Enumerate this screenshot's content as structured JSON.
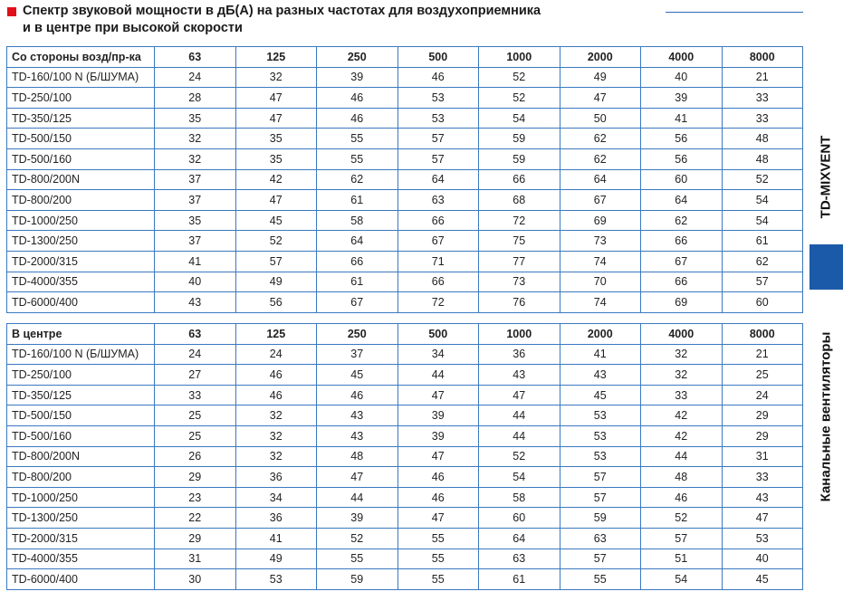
{
  "title": {
    "line1": "Спектр звуковой мощности в дБ(А) на разных частотах для воздухоприемника",
    "line2": "и в центре при высокой скорости",
    "marker_color": "#e0101a"
  },
  "sidebar": {
    "product": "TD-MIXVENT",
    "category": "Канальные вентиляторы",
    "accent_color": "#1b5aa8"
  },
  "tables": [
    {
      "header": [
        "Со стороны возд/пр-ка",
        "63",
        "125",
        "250",
        "500",
        "1000",
        "2000",
        "4000",
        "8000"
      ],
      "rows": [
        [
          "TD-160/100 N (Б/ШУМА)",
          "24",
          "32",
          "39",
          "46",
          "52",
          "49",
          "40",
          "21"
        ],
        [
          "TD-250/100",
          "28",
          "47",
          "46",
          "53",
          "52",
          "47",
          "39",
          "33"
        ],
        [
          "TD-350/125",
          "35",
          "47",
          "46",
          "53",
          "54",
          "50",
          "41",
          "33"
        ],
        [
          "TD-500/150",
          "32",
          "35",
          "55",
          "57",
          "59",
          "62",
          "56",
          "48"
        ],
        [
          "TD-500/160",
          "32",
          "35",
          "55",
          "57",
          "59",
          "62",
          "56",
          "48"
        ],
        [
          "TD-800/200N",
          "37",
          "42",
          "62",
          "64",
          "66",
          "64",
          "60",
          "52"
        ],
        [
          "TD-800/200",
          "37",
          "47",
          "61",
          "63",
          "68",
          "67",
          "64",
          "54"
        ],
        [
          "TD-1000/250",
          "35",
          "45",
          "58",
          "66",
          "72",
          "69",
          "62",
          "54"
        ],
        [
          "TD-1300/250",
          "37",
          "52",
          "64",
          "67",
          "75",
          "73",
          "66",
          "61"
        ],
        [
          "TD-2000/315",
          "41",
          "57",
          "66",
          "71",
          "77",
          "74",
          "67",
          "62"
        ],
        [
          "TD-4000/355",
          "40",
          "49",
          "61",
          "66",
          "73",
          "70",
          "66",
          "57"
        ],
        [
          "TD-6000/400",
          "43",
          "56",
          "67",
          "72",
          "76",
          "74",
          "69",
          "60"
        ]
      ]
    },
    {
      "header": [
        "В центре",
        "63",
        "125",
        "250",
        "500",
        "1000",
        "2000",
        "4000",
        "8000"
      ],
      "rows": [
        [
          "TD-160/100 N (Б/ШУМА)",
          "24",
          "24",
          "37",
          "34",
          "36",
          "41",
          "32",
          "21"
        ],
        [
          "TD-250/100",
          "27",
          "46",
          "45",
          "44",
          "43",
          "43",
          "32",
          "25"
        ],
        [
          "TD-350/125",
          "33",
          "46",
          "46",
          "47",
          "47",
          "45",
          "33",
          "24"
        ],
        [
          "TD-500/150",
          "25",
          "32",
          "43",
          "39",
          "44",
          "53",
          "42",
          "29"
        ],
        [
          "TD-500/160",
          "25",
          "32",
          "43",
          "39",
          "44",
          "53",
          "42",
          "29"
        ],
        [
          "TD-800/200N",
          "26",
          "32",
          "48",
          "47",
          "52",
          "53",
          "44",
          "31"
        ],
        [
          "TD-800/200",
          "29",
          "36",
          "47",
          "46",
          "54",
          "57",
          "48",
          "33"
        ],
        [
          "TD-1000/250",
          "23",
          "34",
          "44",
          "46",
          "58",
          "57",
          "46",
          "43"
        ],
        [
          "TD-1300/250",
          "22",
          "36",
          "39",
          "47",
          "60",
          "59",
          "52",
          "47"
        ],
        [
          "TD-2000/315",
          "29",
          "41",
          "52",
          "55",
          "64",
          "63",
          "57",
          "53"
        ],
        [
          "TD-4000/355",
          "31",
          "49",
          "55",
          "55",
          "63",
          "57",
          "51",
          "40"
        ],
        [
          "TD-6000/400",
          "30",
          "53",
          "59",
          "55",
          "61",
          "55",
          "54",
          "45"
        ]
      ]
    }
  ]
}
